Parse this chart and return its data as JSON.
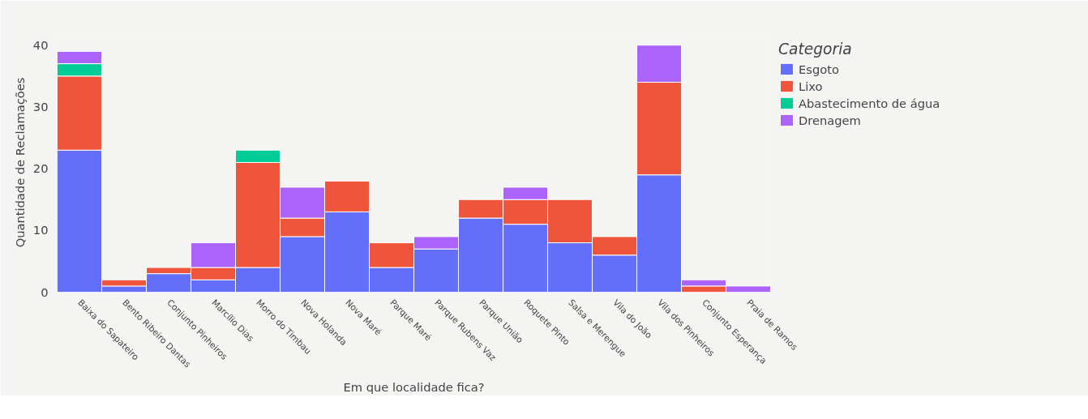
{
  "chart_data": {
    "type": "bar",
    "stacked": true,
    "xlabel": "Em que localidade fica?",
    "ylabel": "Quantidade de Reclamações",
    "legend_title": "Categoria",
    "legend": "right",
    "grid": false,
    "categories": [
      "Baixa do Sapateiro",
      "Bento Ribeiro Dantas",
      "Conjunto Pinheiros",
      "Marcílio Dias",
      "Morro do Timbau",
      "Nova Holanda",
      "Nova Maré",
      "Parque Maré",
      "Parque Rubens Vaz",
      "Parque União",
      "Roquete Pinto",
      "Salsa e Merengue",
      "Vila do João",
      "Vila dos Pinheiros",
      "Conjunto Esperança",
      "Praia de Ramos"
    ],
    "ylim": [
      0,
      42
    ],
    "yticks": [
      0,
      10,
      20,
      30,
      40
    ],
    "series": [
      {
        "name": "Esgoto",
        "color": "#636efa",
        "values": [
          23,
          1,
          3,
          2,
          4,
          9,
          13,
          4,
          7,
          12,
          11,
          8,
          6,
          19,
          0,
          0
        ]
      },
      {
        "name": "Lixo",
        "color": "#ef553b",
        "values": [
          12,
          1,
          1,
          2,
          17,
          3,
          5,
          4,
          0,
          3,
          4,
          7,
          3,
          15,
          1,
          0
        ]
      },
      {
        "name": "Abastecimento de água",
        "color": "#00cc96",
        "values": [
          2,
          0,
          0,
          0,
          2,
          0,
          0,
          0,
          0,
          0,
          0,
          0,
          0,
          0,
          0,
          0
        ]
      },
      {
        "name": "Drenagem",
        "color": "#ab63fa",
        "values": [
          2,
          0,
          0,
          4,
          0,
          5,
          0,
          0,
          2,
          0,
          2,
          0,
          0,
          6,
          1,
          1
        ]
      }
    ]
  }
}
